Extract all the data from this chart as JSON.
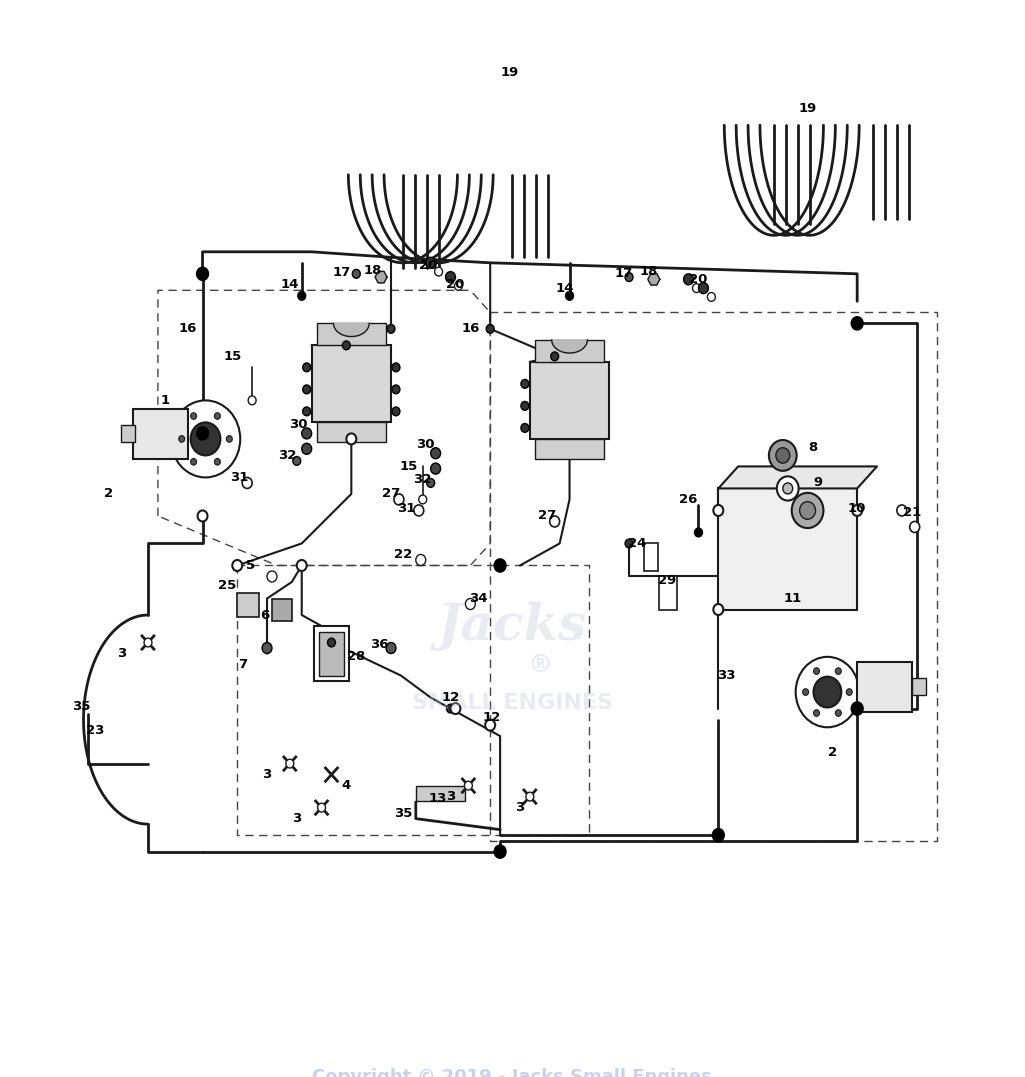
{
  "background_color": "#ffffff",
  "watermark_text": "Copyright © 2019 - Jacks Small Engines",
  "fig_width": 10.25,
  "fig_height": 10.77,
  "dpi": 100,
  "line_color": "#1a1a1a",
  "label_fontsize": 9.5
}
